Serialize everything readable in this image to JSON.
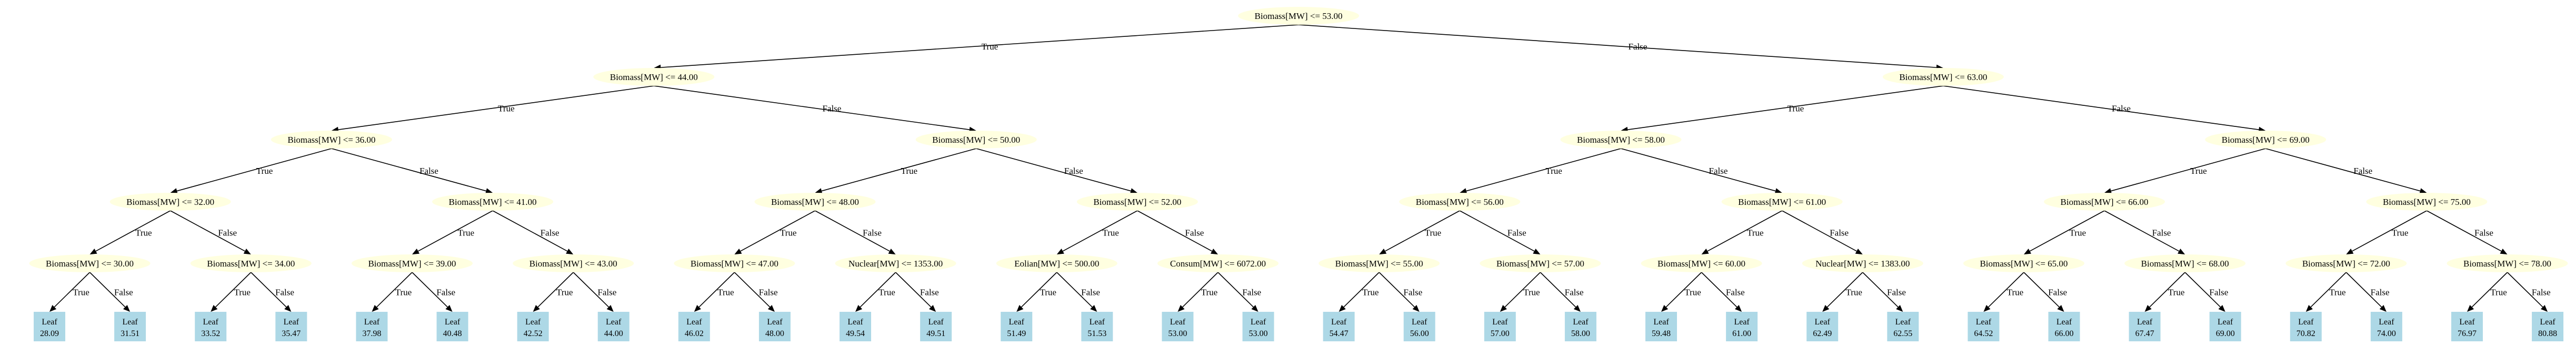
{
  "colors": {
    "decision_fill": "#ffffe0",
    "leaf_fill": "#add8e6",
    "edge": "#000000"
  },
  "edge_labels": {
    "true_label": "True",
    "false_label": "False"
  },
  "tree": {
    "label": "Biomass[MW] <= 53.00",
    "true": {
      "label": "Biomass[MW] <= 44.00",
      "true": {
        "label": "Biomass[MW] <= 36.00",
        "true": {
          "label": "Biomass[MW] <= 32.00",
          "true": {
            "label": "Biomass[MW] <= 30.00",
            "true": {
              "leaf": "Leaf",
              "value": "28.09"
            },
            "false": {
              "leaf": "Leaf",
              "value": "31.51"
            }
          },
          "false": {
            "label": "Biomass[MW] <= 34.00",
            "true": {
              "leaf": "Leaf",
              "value": "33.52"
            },
            "false": {
              "leaf": "Leaf",
              "value": "35.47"
            }
          }
        },
        "false": {
          "label": "Biomass[MW] <= 41.00",
          "true": {
            "label": "Biomass[MW] <= 39.00",
            "true": {
              "leaf": "Leaf",
              "value": "37.98"
            },
            "false": {
              "leaf": "Leaf",
              "value": "40.48"
            }
          },
          "false": {
            "label": "Biomass[MW] <= 43.00",
            "true": {
              "leaf": "Leaf",
              "value": "42.52"
            },
            "false": {
              "leaf": "Leaf",
              "value": "44.00"
            }
          }
        }
      },
      "false": {
        "label": "Biomass[MW] <= 50.00",
        "true": {
          "label": "Biomass[MW] <= 48.00",
          "true": {
            "label": "Biomass[MW] <= 47.00",
            "true": {
              "leaf": "Leaf",
              "value": "46.02"
            },
            "false": {
              "leaf": "Leaf",
              "value": "48.00"
            }
          },
          "false": {
            "label": "Nuclear[MW] <= 1353.00",
            "true": {
              "leaf": "Leaf",
              "value": "49.54"
            },
            "false": {
              "leaf": "Leaf",
              "value": "49.51"
            }
          }
        },
        "false": {
          "label": "Biomass[MW] <= 52.00",
          "true": {
            "label": "Eolian[MW] <= 500.00",
            "true": {
              "leaf": "Leaf",
              "value": "51.49"
            },
            "false": {
              "leaf": "Leaf",
              "value": "51.53"
            }
          },
          "false": {
            "label": "Consum[MW] <= 6072.00",
            "true": {
              "leaf": "Leaf",
              "value": "53.00"
            },
            "false": {
              "leaf": "Leaf",
              "value": "53.00"
            }
          }
        }
      }
    },
    "false": {
      "label": "Biomass[MW] <= 63.00",
      "true": {
        "label": "Biomass[MW] <= 58.00",
        "true": {
          "label": "Biomass[MW] <= 56.00",
          "true": {
            "label": "Biomass[MW] <= 55.00",
            "true": {
              "leaf": "Leaf",
              "value": "54.47"
            },
            "false": {
              "leaf": "Leaf",
              "value": "56.00"
            }
          },
          "false": {
            "label": "Biomass[MW] <= 57.00",
            "true": {
              "leaf": "Leaf",
              "value": "57.00"
            },
            "false": {
              "leaf": "Leaf",
              "value": "58.00"
            }
          }
        },
        "false": {
          "label": "Biomass[MW] <= 61.00",
          "true": {
            "label": "Biomass[MW] <= 60.00",
            "true": {
              "leaf": "Leaf",
              "value": "59.48"
            },
            "false": {
              "leaf": "Leaf",
              "value": "61.00"
            }
          },
          "false": {
            "label": "Nuclear[MW] <= 1383.00",
            "true": {
              "leaf": "Leaf",
              "value": "62.49"
            },
            "false": {
              "leaf": "Leaf",
              "value": "62.55"
            }
          }
        }
      },
      "false": {
        "label": "Biomass[MW] <= 69.00",
        "true": {
          "label": "Biomass[MW] <= 66.00",
          "true": {
            "label": "Biomass[MW] <= 65.00",
            "true": {
              "leaf": "Leaf",
              "value": "64.52"
            },
            "false": {
              "leaf": "Leaf",
              "value": "66.00"
            }
          },
          "false": {
            "label": "Biomass[MW] <= 68.00",
            "true": {
              "leaf": "Leaf",
              "value": "67.47"
            },
            "false": {
              "leaf": "Leaf",
              "value": "69.00"
            }
          }
        },
        "false": {
          "label": "Biomass[MW] <= 75.00",
          "true": {
            "label": "Biomass[MW] <= 72.00",
            "true": {
              "leaf": "Leaf",
              "value": "70.82"
            },
            "false": {
              "leaf": "Leaf",
              "value": "74.00"
            }
          },
          "false": {
            "label": "Biomass[MW] <= 78.00",
            "true": {
              "leaf": "Leaf",
              "value": "76.97"
            },
            "false": {
              "leaf": "Leaf",
              "value": "80.88"
            }
          }
        }
      }
    }
  }
}
